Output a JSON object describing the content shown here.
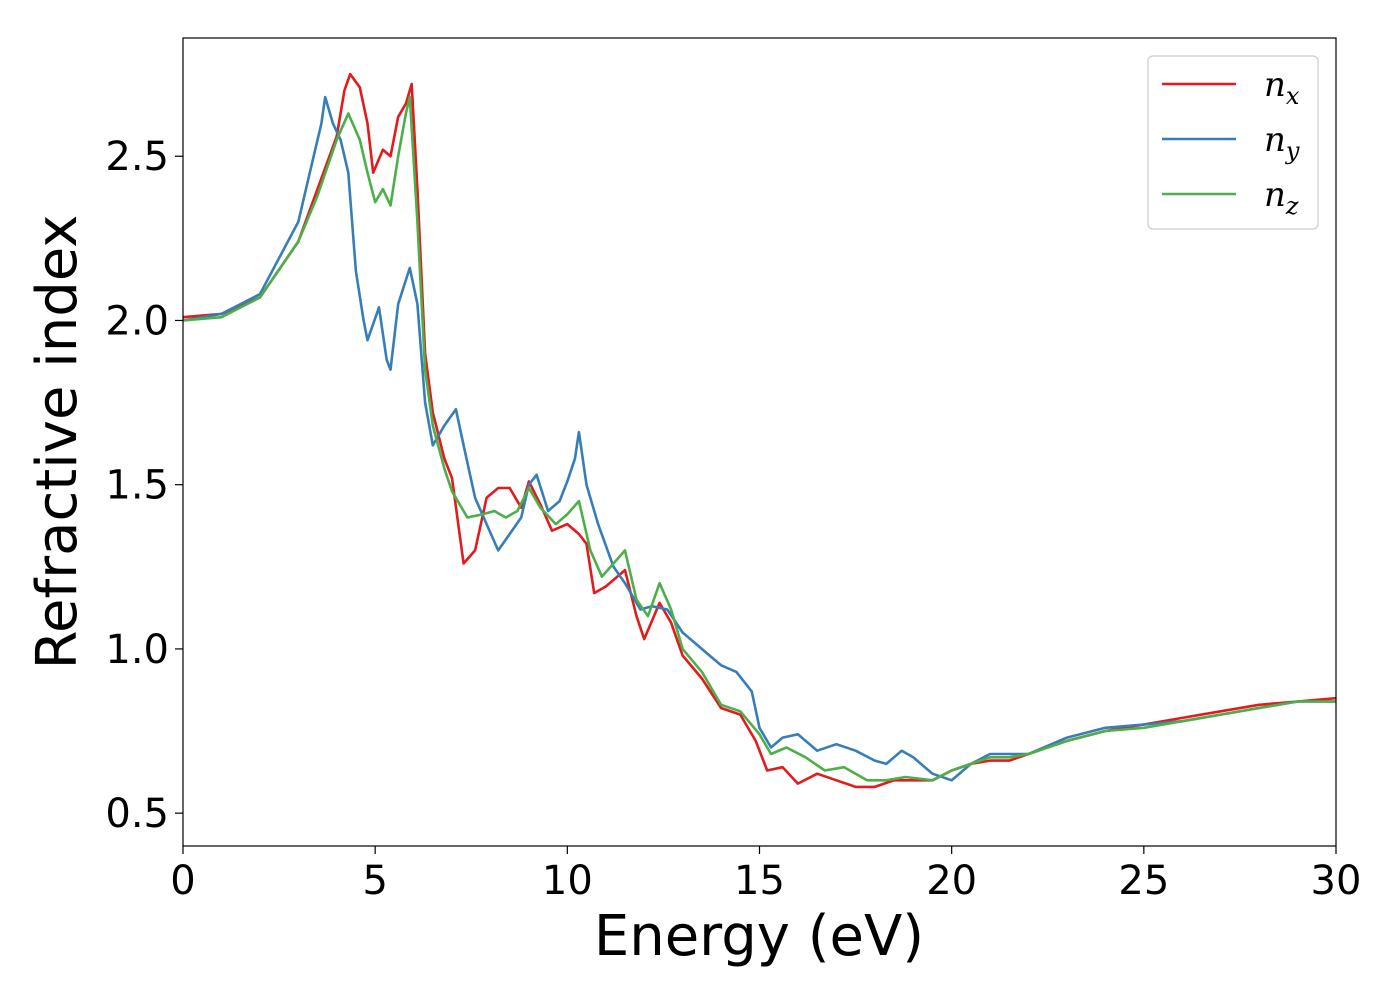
{
  "chart_data": {
    "type": "line",
    "title": "",
    "xlabel": "Energy (eV)",
    "ylabel": "Refractive index",
    "xlim": [
      0,
      30
    ],
    "ylim": [
      0.4,
      2.86
    ],
    "xticks": [
      0,
      5,
      10,
      15,
      20,
      25,
      30
    ],
    "xtick_labels": [
      "0",
      "5",
      "10",
      "15",
      "20",
      "25",
      "30"
    ],
    "yticks": [
      0.5,
      1.0,
      1.5,
      2.0,
      2.5
    ],
    "ytick_labels": [
      "0.5",
      "1.0",
      "1.5",
      "2.0",
      "2.5"
    ],
    "grid": false,
    "legend_position": "top-right",
    "series": [
      {
        "name": "n_x",
        "label_base": "n",
        "label_sub": "x",
        "color": "#e41a1c",
        "points": [
          [
            0,
            2.01
          ],
          [
            1,
            2.02
          ],
          [
            2,
            2.07
          ],
          [
            3,
            2.24
          ],
          [
            3.5,
            2.4
          ],
          [
            4,
            2.56
          ],
          [
            4.2,
            2.7
          ],
          [
            4.35,
            2.75
          ],
          [
            4.6,
            2.71
          ],
          [
            4.8,
            2.6
          ],
          [
            4.95,
            2.45
          ],
          [
            5.2,
            2.52
          ],
          [
            5.4,
            2.5
          ],
          [
            5.6,
            2.62
          ],
          [
            5.8,
            2.66
          ],
          [
            5.95,
            2.72
          ],
          [
            6.1,
            2.4
          ],
          [
            6.3,
            1.9
          ],
          [
            6.5,
            1.72
          ],
          [
            6.8,
            1.58
          ],
          [
            7.0,
            1.52
          ],
          [
            7.3,
            1.26
          ],
          [
            7.6,
            1.3
          ],
          [
            7.9,
            1.46
          ],
          [
            8.2,
            1.49
          ],
          [
            8.5,
            1.49
          ],
          [
            8.8,
            1.43
          ],
          [
            9.0,
            1.51
          ],
          [
            9.3,
            1.44
          ],
          [
            9.6,
            1.36
          ],
          [
            10.0,
            1.38
          ],
          [
            10.3,
            1.35
          ],
          [
            10.5,
            1.32
          ],
          [
            10.7,
            1.17
          ],
          [
            11.0,
            1.19
          ],
          [
            11.5,
            1.24
          ],
          [
            11.8,
            1.1
          ],
          [
            12.0,
            1.03
          ],
          [
            12.4,
            1.14
          ],
          [
            12.7,
            1.08
          ],
          [
            13.0,
            0.98
          ],
          [
            13.5,
            0.91
          ],
          [
            14.0,
            0.82
          ],
          [
            14.5,
            0.8
          ],
          [
            14.9,
            0.72
          ],
          [
            15.2,
            0.63
          ],
          [
            15.6,
            0.64
          ],
          [
            16.0,
            0.59
          ],
          [
            16.5,
            0.62
          ],
          [
            17.0,
            0.6
          ],
          [
            17.5,
            0.58
          ],
          [
            18.0,
            0.58
          ],
          [
            18.5,
            0.6
          ],
          [
            19.0,
            0.6
          ],
          [
            19.5,
            0.6
          ],
          [
            20.0,
            0.63
          ],
          [
            20.5,
            0.65
          ],
          [
            21.0,
            0.66
          ],
          [
            21.5,
            0.66
          ],
          [
            22.0,
            0.68
          ],
          [
            23.0,
            0.72
          ],
          [
            24.0,
            0.75
          ],
          [
            25.0,
            0.77
          ],
          [
            26.0,
            0.79
          ],
          [
            27.0,
            0.81
          ],
          [
            28.0,
            0.83
          ],
          [
            29.0,
            0.84
          ],
          [
            30.0,
            0.85
          ]
        ]
      },
      {
        "name": "n_y",
        "label_base": "n",
        "label_sub": "y",
        "color": "#377eb8",
        "points": [
          [
            0,
            2.0
          ],
          [
            1,
            2.02
          ],
          [
            2,
            2.08
          ],
          [
            3,
            2.3
          ],
          [
            3.3,
            2.45
          ],
          [
            3.6,
            2.6
          ],
          [
            3.7,
            2.68
          ],
          [
            3.9,
            2.6
          ],
          [
            4.1,
            2.55
          ],
          [
            4.3,
            2.45
          ],
          [
            4.5,
            2.15
          ],
          [
            4.7,
            2.0
          ],
          [
            4.8,
            1.94
          ],
          [
            5.1,
            2.04
          ],
          [
            5.3,
            1.88
          ],
          [
            5.4,
            1.85
          ],
          [
            5.6,
            2.05
          ],
          [
            5.9,
            2.16
          ],
          [
            6.1,
            2.05
          ],
          [
            6.3,
            1.75
          ],
          [
            6.5,
            1.62
          ],
          [
            6.8,
            1.68
          ],
          [
            7.1,
            1.73
          ],
          [
            7.3,
            1.62
          ],
          [
            7.6,
            1.46
          ],
          [
            7.9,
            1.38
          ],
          [
            8.2,
            1.3
          ],
          [
            8.5,
            1.35
          ],
          [
            8.8,
            1.4
          ],
          [
            9.0,
            1.5
          ],
          [
            9.2,
            1.53
          ],
          [
            9.5,
            1.42
          ],
          [
            9.8,
            1.45
          ],
          [
            10.0,
            1.51
          ],
          [
            10.2,
            1.58
          ],
          [
            10.3,
            1.66
          ],
          [
            10.5,
            1.5
          ],
          [
            10.8,
            1.38
          ],
          [
            11.2,
            1.25
          ],
          [
            11.5,
            1.2
          ],
          [
            11.9,
            1.12
          ],
          [
            12.2,
            1.13
          ],
          [
            12.6,
            1.12
          ],
          [
            13.0,
            1.05
          ],
          [
            13.3,
            1.02
          ],
          [
            13.7,
            0.98
          ],
          [
            14.0,
            0.95
          ],
          [
            14.4,
            0.93
          ],
          [
            14.8,
            0.87
          ],
          [
            15.0,
            0.76
          ],
          [
            15.3,
            0.7
          ],
          [
            15.6,
            0.73
          ],
          [
            16.0,
            0.74
          ],
          [
            16.5,
            0.69
          ],
          [
            17.0,
            0.71
          ],
          [
            17.5,
            0.69
          ],
          [
            18.0,
            0.66
          ],
          [
            18.3,
            0.65
          ],
          [
            18.7,
            0.69
          ],
          [
            19.0,
            0.67
          ],
          [
            19.5,
            0.62
          ],
          [
            20.0,
            0.6
          ],
          [
            20.5,
            0.65
          ],
          [
            21.0,
            0.68
          ],
          [
            21.5,
            0.68
          ],
          [
            22.0,
            0.68
          ],
          [
            23.0,
            0.73
          ],
          [
            24.0,
            0.76
          ],
          [
            25.0,
            0.77
          ],
          [
            26.0,
            0.78
          ],
          [
            27.0,
            0.8
          ],
          [
            28.0,
            0.82
          ],
          [
            29.0,
            0.84
          ],
          [
            30.0,
            0.84
          ]
        ]
      },
      {
        "name": "n_z",
        "label_base": "n",
        "label_sub": "z",
        "color": "#4daf4a",
        "points": [
          [
            0,
            2.0
          ],
          [
            1,
            2.01
          ],
          [
            2,
            2.07
          ],
          [
            3,
            2.24
          ],
          [
            3.5,
            2.38
          ],
          [
            4.0,
            2.55
          ],
          [
            4.3,
            2.63
          ],
          [
            4.6,
            2.55
          ],
          [
            4.8,
            2.45
          ],
          [
            5.0,
            2.36
          ],
          [
            5.2,
            2.4
          ],
          [
            5.4,
            2.35
          ],
          [
            5.6,
            2.5
          ],
          [
            5.8,
            2.63
          ],
          [
            5.9,
            2.68
          ],
          [
            6.1,
            2.3
          ],
          [
            6.3,
            1.85
          ],
          [
            6.5,
            1.68
          ],
          [
            6.8,
            1.55
          ],
          [
            7.0,
            1.48
          ],
          [
            7.4,
            1.4
          ],
          [
            7.8,
            1.41
          ],
          [
            8.1,
            1.42
          ],
          [
            8.4,
            1.4
          ],
          [
            8.7,
            1.42
          ],
          [
            9.0,
            1.49
          ],
          [
            9.3,
            1.43
          ],
          [
            9.7,
            1.38
          ],
          [
            10.0,
            1.41
          ],
          [
            10.3,
            1.45
          ],
          [
            10.6,
            1.3
          ],
          [
            10.9,
            1.22
          ],
          [
            11.2,
            1.26
          ],
          [
            11.5,
            1.3
          ],
          [
            11.8,
            1.15
          ],
          [
            12.1,
            1.1
          ],
          [
            12.4,
            1.2
          ],
          [
            12.7,
            1.12
          ],
          [
            13.0,
            1.0
          ],
          [
            13.5,
            0.93
          ],
          [
            14.0,
            0.83
          ],
          [
            14.5,
            0.81
          ],
          [
            15.0,
            0.74
          ],
          [
            15.3,
            0.68
          ],
          [
            15.7,
            0.7
          ],
          [
            16.2,
            0.67
          ],
          [
            16.7,
            0.63
          ],
          [
            17.2,
            0.64
          ],
          [
            17.8,
            0.6
          ],
          [
            18.3,
            0.6
          ],
          [
            18.8,
            0.61
          ],
          [
            19.5,
            0.6
          ],
          [
            20.0,
            0.63
          ],
          [
            20.5,
            0.65
          ],
          [
            21.0,
            0.67
          ],
          [
            21.5,
            0.67
          ],
          [
            22.0,
            0.68
          ],
          [
            23.0,
            0.72
          ],
          [
            24.0,
            0.75
          ],
          [
            25.0,
            0.76
          ],
          [
            26.0,
            0.78
          ],
          [
            27.0,
            0.8
          ],
          [
            28.0,
            0.82
          ],
          [
            29.0,
            0.84
          ],
          [
            30.0,
            0.84
          ]
        ]
      }
    ]
  }
}
